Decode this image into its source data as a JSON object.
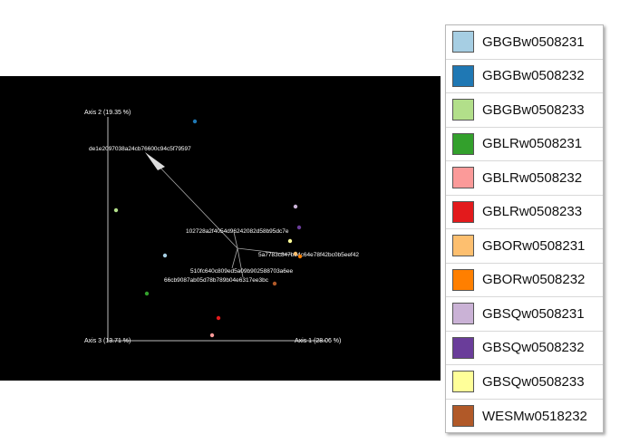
{
  "plot": {
    "background": "#000000",
    "axes": {
      "axis1": "Axis 1 (28.06 %)",
      "axis2": "Axis 2 (19.35 %)",
      "axis3": "Axis 3 (13.71 %)"
    },
    "features": [
      {
        "label": "de1e2097038a24cb76600c94c5f79597"
      },
      {
        "label": "102728a2f4054d96242082d58b95dc7e"
      },
      {
        "label": "5a7783c847b84c64e78f42bc0b5eef42"
      },
      {
        "label": "510fc640c809ed5a09b902588703a6ee"
      },
      {
        "label": "66cb9087ab05d78b789b04e6317ee3bc"
      }
    ],
    "samples": [
      {
        "name": "GBGBw0508232",
        "color": "#1f78b4"
      },
      {
        "name": "GBGBw0508233",
        "color": "#b2df8a"
      },
      {
        "name": "GBGBw0508231",
        "color": "#a6cee3"
      },
      {
        "name": "GBLRw0508231",
        "color": "#33a02c"
      },
      {
        "name": "GBSQw0508231",
        "color": "#cab2d6"
      },
      {
        "name": "GBSQw0508232",
        "color": "#6a3d9a"
      },
      {
        "name": "GBSQw0508233",
        "color": "#ffff99"
      },
      {
        "name": "GBORw0508231",
        "color": "#fdbf6f"
      },
      {
        "name": "GBORw0508232",
        "color": "#ff7f00"
      },
      {
        "name": "WESMw0518232",
        "color": "#b15928"
      },
      {
        "name": "GBLRw0508233",
        "color": "#e31a1c"
      },
      {
        "name": "GBLRw0508232",
        "color": "#fb9a99"
      }
    ]
  },
  "legend": {
    "items": [
      {
        "label": "GBGBw0508231",
        "color": "#a6cee3"
      },
      {
        "label": "GBGBw0508232",
        "color": "#1f78b4"
      },
      {
        "label": "GBGBw0508233",
        "color": "#b2df8a"
      },
      {
        "label": "GBLRw0508231",
        "color": "#33a02c"
      },
      {
        "label": "GBLRw0508232",
        "color": "#fb9a99"
      },
      {
        "label": "GBLRw0508233",
        "color": "#e31a1c"
      },
      {
        "label": "GBORw0508231",
        "color": "#fdbf6f"
      },
      {
        "label": "GBORw0508232",
        "color": "#ff7f00"
      },
      {
        "label": "GBSQw0508231",
        "color": "#cab2d6"
      },
      {
        "label": "GBSQw0508232",
        "color": "#6a3d9a"
      },
      {
        "label": "GBSQw0508233",
        "color": "#ffff99"
      },
      {
        "label": "WESMw0518232",
        "color": "#b15928"
      }
    ]
  }
}
